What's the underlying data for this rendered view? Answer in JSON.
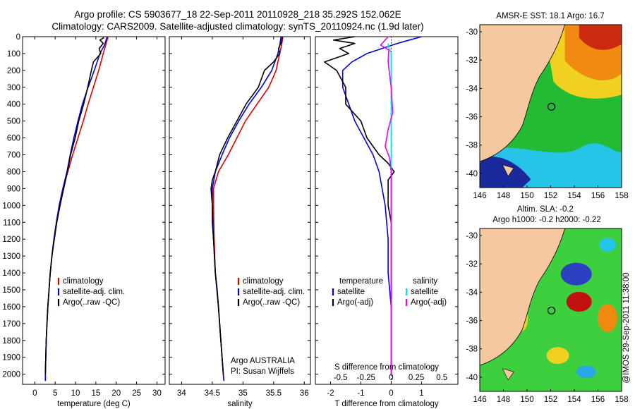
{
  "header": {
    "line1": "Argo profile: CS 5903677_18 22-Sep-2011 20110928_218 35.292S 152.062E",
    "line2": "Climatology: CARS2009. Satellite-adjusted climatology: synTS_20110924.nc (1.9d later)"
  },
  "colors": {
    "climatology": "#dd0000",
    "satellite": "#0000dd",
    "argo": "#000000",
    "salinity_sat": "#00e6e6",
    "salinity_argo": "#ee00ee",
    "land": "#f6c89f"
  },
  "chart_data": [
    {
      "type": "line",
      "panel": "temperature",
      "xlabel": "temperature (deg C)",
      "ylabel": "",
      "xlim": [
        -3,
        32
      ],
      "ylim": [
        2060,
        0
      ],
      "y_reversed": true,
      "xticks": [
        0,
        5,
        10,
        15,
        20,
        25,
        30
      ],
      "yticks": [
        0,
        100,
        200,
        300,
        400,
        500,
        600,
        700,
        800,
        900,
        1000,
        1100,
        1200,
        1300,
        1400,
        1500,
        1600,
        1700,
        1800,
        1900,
        2000
      ],
      "legend": [
        "climatology",
        "satellite-adj. clim.",
        "Argo(..raw -QC)"
      ],
      "legend_position": "lower-center",
      "series": [
        {
          "name": "climatology",
          "color": "#dd0000",
          "points": [
            [
              18.0,
              0
            ],
            [
              17.4,
              50
            ],
            [
              16.8,
              100
            ],
            [
              15.7,
              200
            ],
            [
              14.4,
              300
            ],
            [
              13.1,
              400
            ],
            [
              11.9,
              500
            ],
            [
              10.6,
              600
            ],
            [
              9.3,
              700
            ],
            [
              8.1,
              800
            ],
            [
              6.9,
              900
            ],
            [
              6.0,
              1000
            ],
            [
              5.3,
              1100
            ],
            [
              4.7,
              1200
            ],
            [
              4.2,
              1300
            ],
            [
              3.8,
              1400
            ],
            [
              3.5,
              1500
            ],
            [
              3.2,
              1600
            ],
            [
              3.0,
              1700
            ],
            [
              2.8,
              1800
            ],
            [
              2.7,
              1900
            ],
            [
              2.6,
              2000
            ],
            [
              2.6,
              2040
            ]
          ]
        },
        {
          "name": "satellite-adj. clim.",
          "color": "#0000dd",
          "points": [
            [
              17.8,
              0
            ],
            [
              17.1,
              50
            ],
            [
              16.0,
              100
            ],
            [
              14.6,
              200
            ],
            [
              13.1,
              300
            ],
            [
              11.7,
              400
            ],
            [
              10.6,
              500
            ],
            [
              9.6,
              600
            ],
            [
              8.7,
              700
            ],
            [
              7.9,
              800
            ],
            [
              6.9,
              900
            ],
            [
              6.0,
              1000
            ],
            [
              5.3,
              1100
            ],
            [
              4.7,
              1200
            ],
            [
              4.2,
              1300
            ],
            [
              3.8,
              1400
            ],
            [
              3.5,
              1500
            ],
            [
              3.2,
              1600
            ],
            [
              3.0,
              1700
            ],
            [
              2.8,
              1800
            ],
            [
              2.7,
              1900
            ],
            [
              2.6,
              2000
            ],
            [
              2.6,
              2040
            ]
          ]
        },
        {
          "name": "Argo(..raw -QC)",
          "color": "#000000",
          "points": [
            [
              17.0,
              5
            ],
            [
              16.0,
              20
            ],
            [
              16.8,
              40
            ],
            [
              15.8,
              70
            ],
            [
              16.2,
              100
            ],
            [
              14.4,
              150
            ],
            [
              13.9,
              200
            ],
            [
              13.0,
              300
            ],
            [
              12.0,
              400
            ],
            [
              10.8,
              500
            ],
            [
              9.9,
              600
            ],
            [
              8.8,
              700
            ],
            [
              8.0,
              800
            ],
            [
              7.1,
              900
            ],
            [
              6.2,
              1000
            ],
            [
              5.4,
              1100
            ],
            [
              4.8,
              1200
            ],
            [
              4.2,
              1300
            ],
            [
              3.8,
              1400
            ],
            [
              3.5,
              1500
            ],
            [
              3.2,
              1600
            ],
            [
              3.0,
              1700
            ],
            [
              2.8,
              1800
            ],
            [
              2.7,
              1900
            ],
            [
              2.6,
              2000
            ]
          ]
        }
      ]
    },
    {
      "type": "line",
      "panel": "salinity",
      "xlabel": "salinity",
      "xlim": [
        33.8,
        36.1
      ],
      "ylim": [
        2060,
        0
      ],
      "y_reversed": true,
      "xticks": [
        34,
        34.5,
        35,
        35.5,
        36
      ],
      "legend": [
        "climatology",
        "satellite-adj. clim.",
        "Argo(..raw -QC)"
      ],
      "legend_position": "lower-center",
      "annotation": [
        "Argo AUSTRALIA",
        "PI: Susan Wijffels"
      ],
      "series": [
        {
          "name": "climatology",
          "color": "#dd0000",
          "points": [
            [
              35.65,
              0
            ],
            [
              35.63,
              50
            ],
            [
              35.6,
              100
            ],
            [
              35.54,
              200
            ],
            [
              35.42,
              300
            ],
            [
              35.23,
              400
            ],
            [
              35.04,
              500
            ],
            [
              34.9,
              600
            ],
            [
              34.76,
              700
            ],
            [
              34.6,
              800
            ],
            [
              34.52,
              900
            ],
            [
              34.52,
              1000
            ],
            [
              34.53,
              1200
            ],
            [
              34.55,
              1400
            ],
            [
              34.6,
              1600
            ],
            [
              34.64,
              1800
            ],
            [
              34.68,
              2000
            ],
            [
              34.69,
              2040
            ]
          ]
        },
        {
          "name": "satellite-adj. clim.",
          "color": "#0000dd",
          "points": [
            [
              35.62,
              0
            ],
            [
              35.6,
              50
            ],
            [
              35.57,
              100
            ],
            [
              35.47,
              200
            ],
            [
              35.3,
              300
            ],
            [
              35.1,
              400
            ],
            [
              34.93,
              500
            ],
            [
              34.78,
              600
            ],
            [
              34.66,
              700
            ],
            [
              34.55,
              800
            ],
            [
              34.5,
              900
            ],
            [
              34.5,
              1000
            ],
            [
              34.52,
              1200
            ],
            [
              34.55,
              1400
            ],
            [
              34.6,
              1600
            ],
            [
              34.64,
              1800
            ],
            [
              34.68,
              2000
            ],
            [
              34.69,
              2040
            ]
          ]
        },
        {
          "name": "Argo(..raw -QC)",
          "color": "#000000",
          "points": [
            [
              35.64,
              0
            ],
            [
              35.63,
              30
            ],
            [
              35.58,
              70
            ],
            [
              35.6,
              100
            ],
            [
              35.5,
              150
            ],
            [
              35.35,
              200
            ],
            [
              35.25,
              300
            ],
            [
              35.05,
              400
            ],
            [
              34.9,
              500
            ],
            [
              34.75,
              600
            ],
            [
              34.62,
              700
            ],
            [
              34.55,
              800
            ],
            [
              34.5,
              850
            ],
            [
              34.48,
              900
            ],
            [
              34.5,
              1000
            ],
            [
              34.5,
              1100
            ],
            [
              34.52,
              1200
            ],
            [
              34.55,
              1400
            ],
            [
              34.58,
              1500
            ],
            [
              34.6,
              1600
            ],
            [
              34.64,
              1800
            ],
            [
              34.68,
              2000
            ]
          ]
        }
      ]
    },
    {
      "type": "line",
      "panel": "differences",
      "xlabel": "T difference from climatology",
      "xlabel_top": "S difference from climatology",
      "xlim": [
        -2.5,
        2.2
      ],
      "ylim": [
        2060,
        0
      ],
      "y_reversed": true,
      "xticks": [
        -2,
        -1,
        0,
        1
      ],
      "xtick_labels_T": [
        "-2",
        "-1",
        "0",
        "1"
      ],
      "xtick_labels_S": [
        "-0.5",
        "-0.25",
        "0",
        "0.25",
        "0.5"
      ],
      "legend_left": [
        "temperature",
        "satellite",
        "Argo(-adj)"
      ],
      "legend_right": [
        "salinity",
        "satellite",
        "Argo(-adj)"
      ],
      "series": [
        {
          "name": "satellite",
          "quantity": "temperature",
          "color": "#0000dd",
          "points": [
            [
              1.0,
              0
            ],
            [
              0.6,
              20
            ],
            [
              0.2,
              40
            ],
            [
              -0.3,
              70
            ],
            [
              -0.8,
              100
            ],
            [
              -1.3,
              150
            ],
            [
              -1.6,
              200
            ],
            [
              -1.6,
              300
            ],
            [
              -1.4,
              400
            ],
            [
              -1.2,
              500
            ],
            [
              -0.9,
              600
            ],
            [
              -0.6,
              700
            ],
            [
              -0.4,
              800
            ],
            [
              -0.3,
              900
            ],
            [
              -0.2,
              1000
            ],
            [
              -0.1,
              1200
            ],
            [
              -0.1,
              1400
            ],
            [
              0,
              1600
            ],
            [
              0,
              2000
            ]
          ]
        },
        {
          "name": "Argo(-adj)",
          "quantity": "temperature",
          "color": "#000000",
          "points": [
            [
              -1.2,
              0
            ],
            [
              -1.9,
              20
            ],
            [
              -1.2,
              40
            ],
            [
              -1.7,
              70
            ],
            [
              -1.4,
              100
            ],
            [
              -2.2,
              150
            ],
            [
              -1.8,
              200
            ],
            [
              -1.5,
              300
            ],
            [
              -1.5,
              400
            ],
            [
              -1.0,
              500
            ],
            [
              -0.8,
              600
            ],
            [
              -0.4,
              700
            ],
            [
              -0.1,
              750
            ],
            [
              0.1,
              800
            ],
            [
              -0.1,
              850
            ],
            [
              -0.1,
              1000
            ],
            [
              0,
              1100
            ],
            [
              0,
              1200
            ],
            [
              0,
              1400
            ],
            [
              0,
              1600
            ],
            [
              0,
              2000
            ]
          ]
        },
        {
          "name": "satellite",
          "quantity": "salinity",
          "color": "#00e6e6",
          "points": [
            [
              -0.1,
              40
            ],
            [
              -0.1,
              60
            ],
            [
              0,
              100
            ],
            [
              0,
              200
            ],
            [
              0,
              400
            ],
            [
              0,
              600
            ],
            [
              0,
              800
            ],
            [
              0,
              1000
            ],
            [
              0,
              1200
            ],
            [
              0,
              1400
            ],
            [
              0,
              1600
            ],
            [
              0,
              1800
            ],
            [
              0,
              2000
            ]
          ]
        },
        {
          "name": "Argo(-adj)",
          "quantity": "salinity",
          "color": "#ee00ee",
          "points": [
            [
              -0.1,
              0
            ],
            [
              -0.35,
              50
            ],
            [
              -0.08,
              80
            ],
            [
              -0.1,
              150
            ],
            [
              0,
              300
            ],
            [
              0.05,
              450
            ],
            [
              -0.1,
              550
            ],
            [
              -0.2,
              650
            ],
            [
              -0.05,
              720
            ],
            [
              0,
              800
            ],
            [
              0,
              1000
            ],
            [
              0,
              1200
            ],
            [
              0,
              1400
            ],
            [
              0,
              1600
            ],
            [
              0,
              1800
            ],
            [
              0,
              2000
            ]
          ]
        }
      ]
    },
    {
      "type": "heatmap",
      "panel": "map-sst",
      "title": "AMSR-E SST: 18.1  Argo: 16.7",
      "xlim": [
        146,
        158
      ],
      "ylim": [
        -41,
        -29.5
      ],
      "xticks": [
        146,
        148,
        150,
        152,
        154,
        156,
        158
      ],
      "yticks": [
        -30,
        -32,
        -34,
        -36,
        -38,
        -40
      ],
      "argo_position": {
        "lon": 152.062,
        "lat": -35.292
      }
    },
    {
      "type": "heatmap",
      "panel": "map-sla",
      "title": "Altim. SLA: -0.2",
      "subtitle": "Argo h1000: -0.2 h2000: -0.22",
      "xlim": [
        146,
        158
      ],
      "ylim": [
        -41,
        -29.5
      ],
      "xticks": [
        146,
        148,
        150,
        152,
        154,
        156,
        158
      ],
      "yticks": [
        -30,
        -32,
        -34,
        -36,
        -38,
        -40
      ],
      "argo_position": {
        "lon": 152.062,
        "lat": -35.292
      }
    }
  ],
  "credit": "@IMOS 29-Sep-2011 11:38:00"
}
